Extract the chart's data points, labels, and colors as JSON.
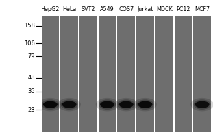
{
  "cell_lines": [
    "HepG2",
    "HeLa",
    "SVT2",
    "A549",
    "COS7",
    "Jurkat",
    "MDCK",
    "PC12",
    "MCF7"
  ],
  "mw_markers": [
    158,
    106,
    79,
    48,
    35,
    23
  ],
  "gel_bg": "#6e6e6e",
  "lane_gap_color": "#b0b0b0",
  "fig_bg": "#ffffff",
  "marker_fontsize": 6.0,
  "label_fontsize": 5.8,
  "band_lanes": [
    0,
    1,
    3,
    4,
    5,
    8
  ],
  "band_intensities": [
    1.0,
    0.85,
    0.9,
    0.85,
    0.9,
    0.75
  ],
  "band_mw": 26,
  "log_min": 1.146,
  "log_max": 2.301
}
